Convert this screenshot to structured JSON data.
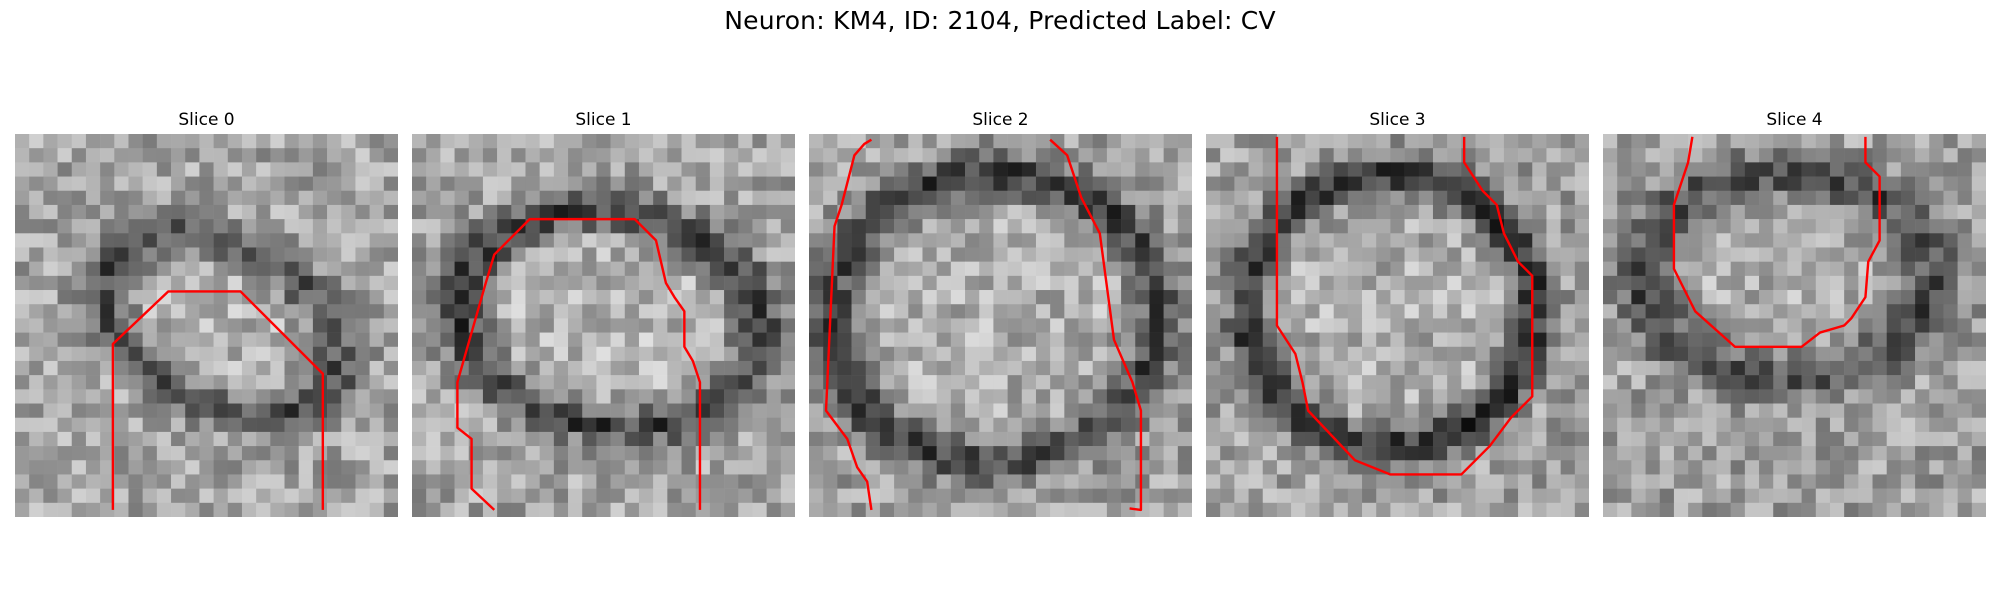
{
  "figure": {
    "title": "Neuron: KM4, ID: 2104, Predicted Label: CV"
  },
  "panels": [
    {
      "title": "Slice 0"
    },
    {
      "title": "Slice 1"
    },
    {
      "title": "Slice 2"
    },
    {
      "title": "Slice 3"
    },
    {
      "title": "Slice 4"
    }
  ],
  "colors": {
    "contour": "#ff0000",
    "background": "#ffffff",
    "colormap": "gray"
  }
}
